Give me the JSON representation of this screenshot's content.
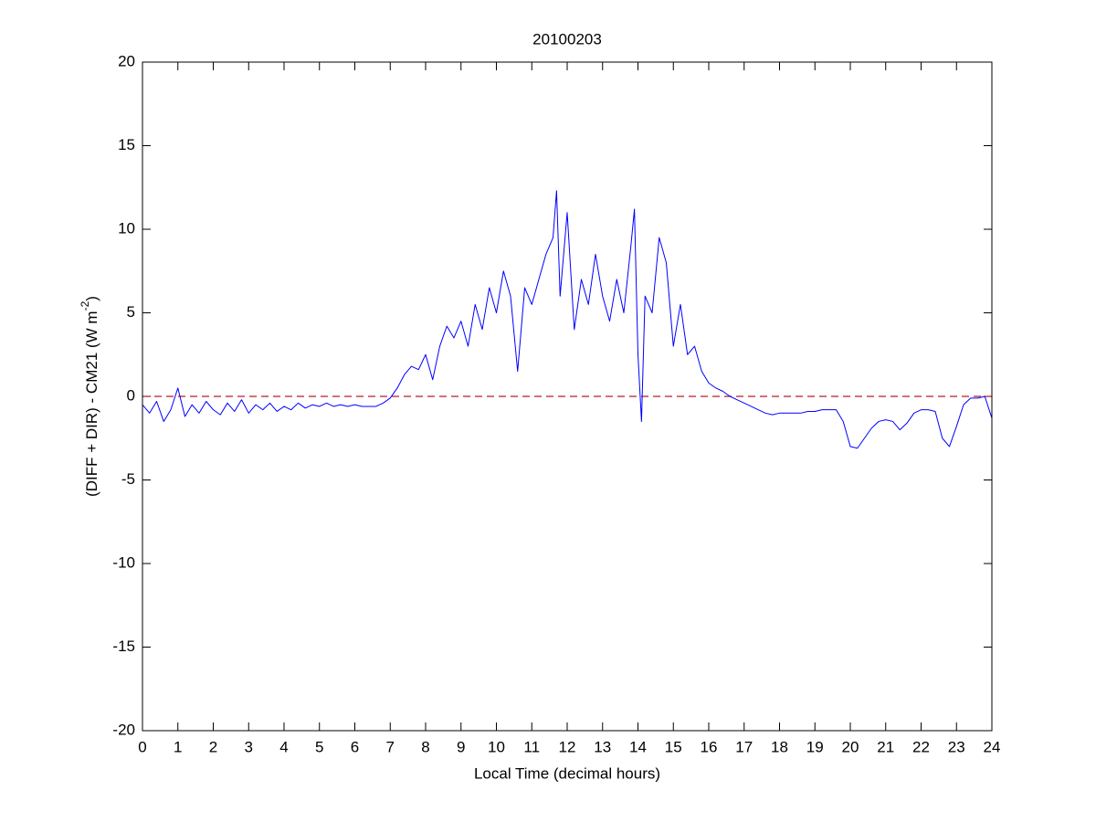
{
  "chart_data": {
    "type": "line",
    "title": "20100203",
    "xlabel": "Local Time (decimal hours)",
    "ylabel": [
      "(DIFF + DIR) - CM21 (W m",
      "-2",
      ")"
    ],
    "x": [
      0,
      0.2,
      0.4,
      0.6,
      0.8,
      1,
      1.2,
      1.4,
      1.6,
      1.8,
      2,
      2.2,
      2.4,
      2.6,
      2.8,
      3,
      3.2,
      3.4,
      3.6,
      3.8,
      4,
      4.2,
      4.4,
      4.6,
      4.8,
      5,
      5.2,
      5.4,
      5.6,
      5.8,
      6,
      6.2,
      6.4,
      6.6,
      6.8,
      7,
      7.2,
      7.4,
      7.6,
      7.8,
      8,
      8.2,
      8.4,
      8.6,
      8.8,
      9,
      9.2,
      9.4,
      9.6,
      9.8,
      10,
      10.2,
      10.4,
      10.6,
      10.8,
      11,
      11.2,
      11.4,
      11.6,
      11.7,
      11.8,
      12,
      12.2,
      12.4,
      12.6,
      12.8,
      13,
      13.2,
      13.4,
      13.6,
      13.8,
      13.9,
      14,
      14.1,
      14.2,
      14.4,
      14.6,
      14.8,
      15,
      15.2,
      15.4,
      15.6,
      15.8,
      16,
      16.2,
      16.4,
      16.6,
      16.8,
      17,
      17.2,
      17.4,
      17.6,
      17.8,
      18,
      18.2,
      18.4,
      18.6,
      18.8,
      19,
      19.2,
      19.4,
      19.6,
      19.8,
      20,
      20.2,
      20.4,
      20.6,
      20.8,
      21,
      21.2,
      21.4,
      21.6,
      21.8,
      22,
      22.2,
      22.4,
      22.6,
      22.8,
      23,
      23.2,
      23.4,
      23.6,
      23.8,
      24
    ],
    "series": [
      {
        "color": "#0000ff",
        "values": [
          -0.5,
          -1.0,
          -0.3,
          -1.5,
          -0.8,
          0.5,
          -1.2,
          -0.5,
          -1.0,
          -0.3,
          -0.8,
          -1.1,
          -0.4,
          -0.9,
          -0.2,
          -1.0,
          -0.5,
          -0.8,
          -0.4,
          -0.9,
          -0.6,
          -0.8,
          -0.4,
          -0.7,
          -0.5,
          -0.6,
          -0.4,
          -0.6,
          -0.5,
          -0.6,
          -0.5,
          -0.6,
          -0.6,
          -0.6,
          -0.4,
          -0.1,
          0.5,
          1.3,
          1.8,
          1.6,
          2.5,
          1.0,
          3.0,
          4.2,
          3.5,
          4.5,
          3.0,
          5.5,
          4.0,
          6.5,
          5.0,
          7.5,
          6.0,
          1.5,
          6.5,
          5.5,
          7.0,
          8.5,
          9.5,
          12.3,
          6.0,
          11.0,
          4.0,
          7.0,
          5.5,
          8.5,
          6.0,
          4.5,
          7.0,
          5.0,
          9.0,
          11.2,
          2.5,
          -1.5,
          6.0,
          5.0,
          9.5,
          8.0,
          3.0,
          5.5,
          2.5,
          3.0,
          1.5,
          0.8,
          0.5,
          0.3,
          0.0,
          -0.2,
          -0.4,
          -0.6,
          -0.8,
          -1.0,
          -1.1,
          -1.0,
          -1.0,
          -1.0,
          -1.0,
          -0.9,
          -0.9,
          -0.8,
          -0.8,
          -0.8,
          -1.5,
          -3.0,
          -3.1,
          -2.5,
          -1.9,
          -1.5,
          -1.4,
          -1.5,
          -2.0,
          -1.6,
          -1.0,
          -0.8,
          -0.8,
          -0.9,
          -2.5,
          -3.0,
          -1.8,
          -0.5,
          -0.1,
          -0.1,
          0.0,
          -1.3
        ]
      }
    ],
    "hlines": [
      {
        "value": 0,
        "color": "#b22222",
        "dashed": true
      }
    ],
    "xlim": [
      0,
      24
    ],
    "xticks": [
      0,
      1,
      2,
      3,
      4,
      5,
      6,
      7,
      8,
      9,
      10,
      11,
      12,
      13,
      14,
      15,
      16,
      17,
      18,
      19,
      20,
      21,
      22,
      23,
      24
    ],
    "ylim": [
      -20,
      20
    ],
    "yticks": [
      -20,
      -15,
      -10,
      -5,
      0,
      5,
      10,
      15,
      20
    ]
  }
}
